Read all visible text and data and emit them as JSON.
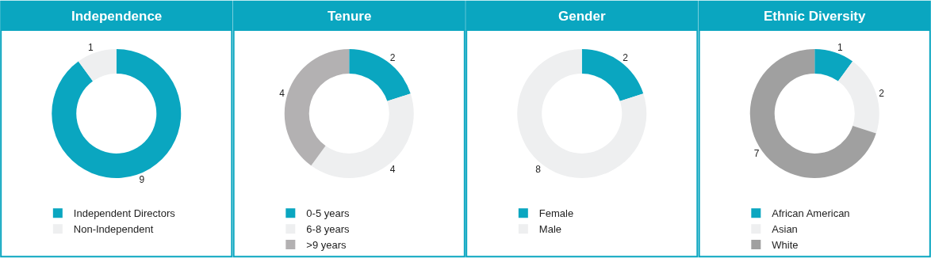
{
  "chart_data": [
    {
      "type": "donut",
      "title": "Independence",
      "categories": [
        "Independent Directors",
        "Non-Independent"
      ],
      "values": [
        9,
        1
      ],
      "colors": [
        "#0aa6c0",
        "#eeeff0"
      ],
      "data_labels": true,
      "legend": "bottom"
    },
    {
      "type": "donut",
      "title": "Tenure",
      "categories": [
        "0-5 years",
        "6-8 years",
        ">9 years"
      ],
      "values": [
        2,
        4,
        4
      ],
      "colors": [
        "#0aa6c0",
        "#eeeff0",
        "#b3b1b2"
      ],
      "data_labels": true,
      "legend": "bottom"
    },
    {
      "type": "donut",
      "title": "Gender",
      "categories": [
        "Female",
        "Male"
      ],
      "values": [
        2,
        8
      ],
      "colors": [
        "#0aa6c0",
        "#eeeff0"
      ],
      "data_labels": true,
      "legend": "bottom"
    },
    {
      "type": "donut",
      "title": "Ethnic Diversity",
      "categories": [
        "African American",
        "Asian",
        "White"
      ],
      "values": [
        1,
        2,
        7
      ],
      "colors": [
        "#0aa6c0",
        "#eeeff0",
        "#a0a0a0"
      ],
      "data_labels": true,
      "legend": "bottom"
    }
  ]
}
